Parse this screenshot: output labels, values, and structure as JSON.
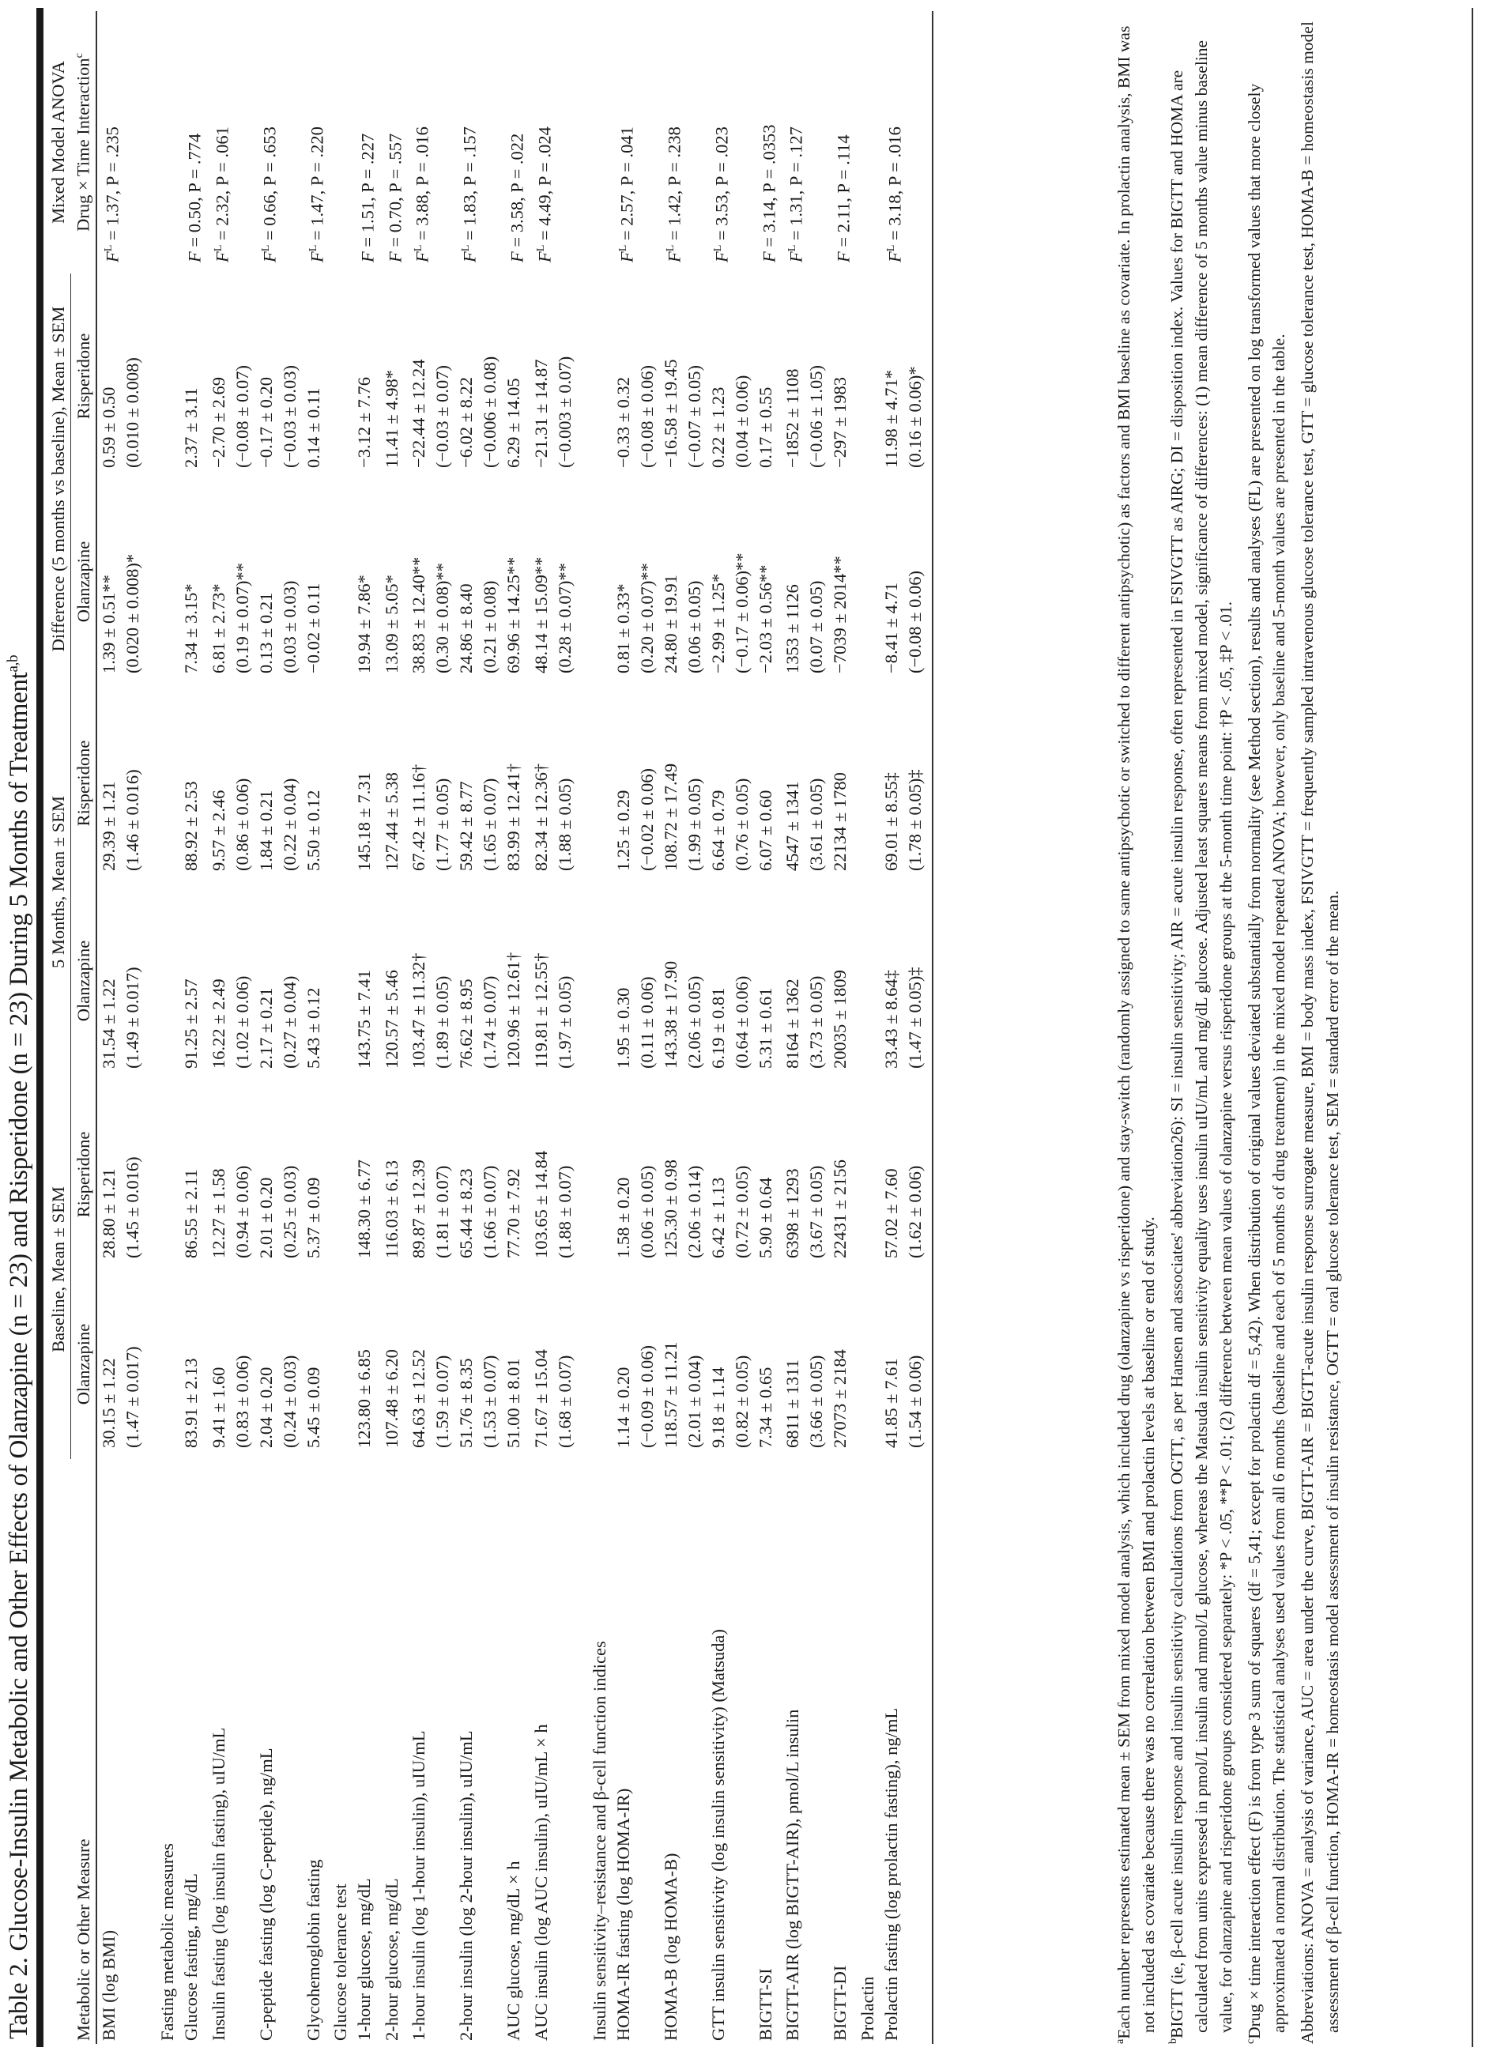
{
  "title": {
    "text": "Table 2. Glucose-Insulin Metabolic and Other Effects of Olanzapine (n = 23) and Risperidone (n = 23) During 5 Months of Treatment",
    "sup": "a,b"
  },
  "header": {
    "measure": "Metabolic or Other Measure",
    "baseline": "Baseline, Mean ± SEM",
    "five_months": "5 Months, Mean ± SEM",
    "difference": "Difference (5 months vs baseline), Mean ± SEM",
    "anova_line1": "Mixed Model ANOVA",
    "anova_line2": "Drug × Time Interaction",
    "anova_sup": "c",
    "olanzapine": "Olanzapine",
    "risperidone": "Risperidone"
  },
  "rows": [
    {
      "measure": "BMI (log BMI)",
      "cells": [
        [
          "30.15 ± 1.22",
          "(1.47 ± 0.017)"
        ],
        [
          "28.80 ± 1.21",
          "(1.45 ± 0.016)"
        ],
        [
          "31.54 ± 1.22",
          "(1.49 ± 0.017)"
        ],
        [
          "29.39 ± 1.21",
          "(1.46 ± 0.016)"
        ],
        [
          "1.39 ± 0.51**",
          "(0.020 ± 0.008)*"
        ],
        [
          "0.59 ± 0.50",
          "(0.010 ± 0.008)"
        ]
      ],
      "anova": {
        "stat": "F",
        "sup": "L",
        "rest": " = 1.37, P = .235"
      }
    },
    {
      "gap": true
    },
    {
      "section": "Fasting metabolic measures"
    },
    {
      "measure": "Glucose fasting, mg/dL",
      "cells": [
        [
          "83.91 ± 2.13"
        ],
        [
          "86.55 ± 2.11"
        ],
        [
          "91.25 ± 2.57"
        ],
        [
          "88.92 ± 2.53"
        ],
        [
          "7.34 ± 3.15*"
        ],
        [
          "2.37 ± 3.11"
        ]
      ],
      "anova": {
        "stat": "F",
        "sup": "",
        "rest": " = 0.50, P = .774"
      }
    },
    {
      "measure": "Insulin fasting (log insulin fasting), uIU/mL",
      "cells": [
        [
          "9.41 ± 1.60",
          "(0.83 ± 0.06)"
        ],
        [
          "12.27 ± 1.58",
          "(0.94 ± 0.06)"
        ],
        [
          "16.22 ± 2.49",
          "(1.02 ± 0.06)"
        ],
        [
          "9.57 ± 2.46",
          "(0.86 ± 0.06)"
        ],
        [
          "6.81 ± 2.73*",
          "(0.19 ± 0.07)**"
        ],
        [
          "−2.70 ± 2.69",
          "(−0.08 ± 0.07)"
        ]
      ],
      "anova": {
        "stat": "F",
        "sup": "L",
        "rest": " = 2.32, P = .061"
      }
    },
    {
      "measure": "C-peptide fasting (log C-peptide), ng/mL",
      "cells": [
        [
          "2.04 ± 0.20",
          "(0.24 ± 0.03)"
        ],
        [
          "2.01 ± 0.20",
          "(0.25 ± 0.03)"
        ],
        [
          "2.17 ± 0.21",
          "(0.27 ± 0.04)"
        ],
        [
          "1.84 ± 0.21",
          "(0.22 ± 0.04)"
        ],
        [
          "0.13 ± 0.21",
          "(0.03 ± 0.03)"
        ],
        [
          "−0.17 ± 0.20",
          "(−0.03 ± 0.03)"
        ]
      ],
      "anova": {
        "stat": "F",
        "sup": "L",
        "rest": " = 0.66, P = .653"
      }
    },
    {
      "measure": "Glycohemoglobin fasting",
      "cells": [
        [
          "5.45 ± 0.09"
        ],
        [
          "5.37 ± 0.09"
        ],
        [
          "5.43 ± 0.12"
        ],
        [
          "5.50 ± 0.12"
        ],
        [
          "−0.02 ± 0.11"
        ],
        [
          "0.14 ± 0.11"
        ]
      ],
      "anova": {
        "stat": "F",
        "sup": "L",
        "rest": " = 1.47, P = .220"
      }
    },
    {
      "section": "Glucose tolerance test"
    },
    {
      "measure": "1-hour glucose, mg/dL",
      "cells": [
        [
          "123.80 ± 6.85"
        ],
        [
          "148.30 ± 6.77"
        ],
        [
          "143.75 ± 7.41"
        ],
        [
          "145.18 ± 7.31"
        ],
        [
          "19.94 ± 7.86*"
        ],
        [
          "−3.12 ± 7.76"
        ]
      ],
      "anova": {
        "stat": "F",
        "sup": "",
        "rest": " = 1.51, P = .227"
      }
    },
    {
      "measure": "2-hour glucose, mg/dL",
      "cells": [
        [
          "107.48 ± 6.20"
        ],
        [
          "116.03 ± 6.13"
        ],
        [
          "120.57 ± 5.46"
        ],
        [
          "127.44 ± 5.38"
        ],
        [
          "13.09 ± 5.05*"
        ],
        [
          "11.41 ± 4.98*"
        ]
      ],
      "anova": {
        "stat": "F",
        "sup": "",
        "rest": " = 0.70, P = .557"
      }
    },
    {
      "measure": "1-hour insulin (log 1-hour insulin), uIU/mL",
      "cells": [
        [
          "64.63 ± 12.52",
          "(1.59 ± 0.07)"
        ],
        [
          "89.87 ± 12.39",
          "(1.81 ± 0.07)"
        ],
        [
          "103.47 ± 11.32†",
          "(1.89 ± 0.05)"
        ],
        [
          "67.42 ± 11.16†",
          "(1.77 ± 0.05)"
        ],
        [
          "38.83 ± 12.40**",
          "(0.30 ± 0.08)**"
        ],
        [
          "−22.44 ± 12.24",
          "(−0.03 ± 0.07)"
        ]
      ],
      "anova": {
        "stat": "F",
        "sup": "L",
        "rest": " = 3.88, P = .016"
      }
    },
    {
      "measure": "2-hour insulin (log 2-hour insulin), uIU/mL",
      "cells": [
        [
          "51.76 ± 8.35",
          "(1.53 ± 0.07)"
        ],
        [
          "65.44 ± 8.23",
          "(1.66 ± 0.07)"
        ],
        [
          "76.62 ± 8.95",
          "(1.74 ± 0.07)"
        ],
        [
          "59.42 ± 8.77",
          "(1.65 ± 0.07)"
        ],
        [
          "24.86 ± 8.40",
          "(0.21 ± 0.08)"
        ],
        [
          "−6.02 ± 8.22",
          "(−0.006 ± 0.08)"
        ]
      ],
      "anova": {
        "stat": "F",
        "sup": "L",
        "rest": " = 1.83, P = .157"
      }
    },
    {
      "measure": "AUC glucose, mg/dL × h",
      "cells": [
        [
          "51.00 ± 8.01"
        ],
        [
          "77.70 ± 7.92"
        ],
        [
          "120.96 ± 12.61†"
        ],
        [
          "83.99 ± 12.41†"
        ],
        [
          "69.96 ± 14.25**"
        ],
        [
          "6.29 ± 14.05"
        ]
      ],
      "anova": {
        "stat": "F",
        "sup": "",
        "rest": " = 3.58, P = .022"
      }
    },
    {
      "measure": "AUC insulin (log AUC insulin), uIU/mL × h",
      "cells": [
        [
          "71.67 ± 15.04",
          "(1.68 ± 0.07)"
        ],
        [
          "103.65 ± 14.84",
          "(1.88 ± 0.07)"
        ],
        [
          "119.81 ± 12.55†",
          "(1.97 ± 0.05)"
        ],
        [
          "82.34 ± 12.36†",
          "(1.88 ± 0.05)"
        ],
        [
          "48.14 ± 15.09**",
          "(0.28 ± 0.07)**"
        ],
        [
          "−21.31 ± 14.87",
          "(−0.003 ± 0.07)"
        ]
      ],
      "anova": {
        "stat": "F",
        "sup": "L",
        "rest": " = 4.49, P = .024"
      }
    },
    {
      "gap": true
    },
    {
      "section": "Insulin sensitivity–resistance and β-cell function indices"
    },
    {
      "measure": "HOMA-IR fasting (log HOMA-IR)",
      "cells": [
        [
          "1.14 ± 0.20",
          "(−0.09 ± 0.06)"
        ],
        [
          "1.58 ± 0.20",
          "(0.06 ± 0.05)"
        ],
        [
          "1.95 ± 0.30",
          "(0.11 ± 0.06)"
        ],
        [
          "1.25 ± 0.29",
          "(−0.02 ± 0.06)"
        ],
        [
          "0.81 ± 0.33*",
          "(0.20 ± 0.07)**"
        ],
        [
          "−0.33 ± 0.32",
          "(−0.08 ± 0.06)"
        ]
      ],
      "anova": {
        "stat": "F",
        "sup": "L",
        "rest": " = 2.57, P = .041"
      }
    },
    {
      "measure": "HOMA-B (log HOMA-B)",
      "cells": [
        [
          "118.57 ± 11.21",
          "(2.01 ± 0.04)"
        ],
        [
          "125.30 ± 0.98",
          "(2.06 ± 0.14)"
        ],
        [
          "143.38 ± 17.90",
          "(2.06 ± 0.05)"
        ],
        [
          "108.72 ± 17.49",
          "(1.99 ± 0.05)"
        ],
        [
          "24.80 ± 19.91",
          "(0.06 ± 0.05)"
        ],
        [
          "−16.58 ± 19.45",
          "(−0.07 ± 0.05)"
        ]
      ],
      "anova": {
        "stat": "F",
        "sup": "L",
        "rest": " = 1.42, P = .238"
      }
    },
    {
      "measure": "GTT insulin sensitivity (log insulin sensitivity) (Matsuda)",
      "cells": [
        [
          "9.18 ± 1.14",
          "(0.82 ± 0.05)"
        ],
        [
          "6.42 ± 1.13",
          "(0.72 ± 0.05)"
        ],
        [
          "6.19 ± 0.81",
          "(0.64 ± 0.06)"
        ],
        [
          "6.64 ± 0.79",
          "(0.76 ± 0.05)"
        ],
        [
          "−2.99 ± 1.25*",
          "(−0.17 ± 0.06)**"
        ],
        [
          "0.22 ± 1.23",
          "(0.04 ± 0.06)"
        ]
      ],
      "anova": {
        "stat": "F",
        "sup": "L",
        "rest": " = 3.53, P = .023"
      }
    },
    {
      "measure": "BIGTT-SI",
      "cells": [
        [
          "7.34 ± 0.65"
        ],
        [
          "5.90 ± 0.64"
        ],
        [
          "5.31 ± 0.61"
        ],
        [
          "6.07 ± 0.60"
        ],
        [
          "−2.03 ± 0.56**"
        ],
        [
          "0.17 ± 0.55"
        ]
      ],
      "anova": {
        "stat": "F",
        "sup": "",
        "rest": " = 3.14, P = .0353"
      }
    },
    {
      "measure": "BIGTT-AIR (log BIGTT-AIR), pmol/L insulin",
      "cells": [
        [
          "6811 ± 1311",
          "(3.66 ± 0.05)"
        ],
        [
          "6398 ± 1293",
          "(3.67 ± 0.05)"
        ],
        [
          "8164 ± 1362",
          "(3.73 ± 0.05)"
        ],
        [
          "4547 ± 1341",
          "(3.61 ± 0.05)"
        ],
        [
          "1353 ± 1126",
          "(0.07 ± 0.05)"
        ],
        [
          "−1852 ± 1108",
          "(−0.06 ± 1.05)"
        ]
      ],
      "anova": {
        "stat": "F",
        "sup": "L",
        "rest": " = 1.31, P = .127"
      }
    },
    {
      "measure": "BIGTT-DI",
      "cells": [
        [
          "27073 ± 2184"
        ],
        [
          "22431 ± 2156"
        ],
        [
          "20035 ± 1809"
        ],
        [
          "22134 ± 1780"
        ],
        [
          "−7039 ± 2014**"
        ],
        [
          "−297 ± 1983"
        ]
      ],
      "anova": {
        "stat": "F",
        "sup": "",
        "rest": " = 2.11, P = .114"
      }
    },
    {
      "section": "Prolactin"
    },
    {
      "measure": "Prolactin fasting (log prolactin fasting), ng/mL",
      "cells": [
        [
          "41.85 ± 7.61",
          "(1.54 ± 0.06)"
        ],
        [
          "57.02 ± 7.60",
          "(1.62 ± 0.06)"
        ],
        [
          "33.43 ± 8.64‡",
          "(1.47 ± 0.05)‡"
        ],
        [
          "69.01 ± 8.55‡",
          "(1.78 ± 0.05)‡"
        ],
        [
          "−8.41 ± 4.71",
          "(−0.08 ± 0.06)"
        ],
        [
          "11.98 ± 4.71*",
          "(0.16 ± 0.06)*"
        ]
      ],
      "anova": {
        "stat": "F",
        "sup": "L",
        "rest": " = 3.18, P = .016"
      },
      "last": true
    }
  ],
  "footnotes": [
    {
      "mark": "a",
      "text": "Each number represents estimated mean ± SEM from mixed model analysis, which included drug (olanzapine vs risperidone) and stay-switch (randomly assigned to same antipsychotic or switched to different antipsychotic) as factors and BMI baseline as covariate. In prolactin analysis, BMI was not included as covariate because there was no correlation between BMI and prolactin levels at baseline or end of study."
    },
    {
      "mark": "b",
      "text": "BIGTT (ie, β-cell acute insulin response and insulin sensitivity calculations from OGTT, as per Hansen and associates' abbreviation26): SI = insulin sensitivity; AIR = acute insulin response, often represented in FSIVGTT as AIRG; DI = disposition index. Values for BIGTT and HOMA are calculated from units expressed in pmol/L insulin and mmol/L glucose, whereas the Matsuda insulin sensitivity equality uses insulin uIU/mL and mg/dL glucose. Adjusted least squares means from mixed model, significance of differences: (1) mean difference of 5 months value minus baseline value, for olanzapine and risperidone groups considered separately: *P < .05, **P < .01; (2) difference between mean values of olanzapine versus risperidone groups at the 5-month time point: †P < .05, ‡P < .01."
    },
    {
      "mark": "c",
      "text": "Drug × time interaction effect (F) is from type 3 sum of squares (df = 5,41; except for prolactin df = 5,42). When distribution of original values deviated substantially from normality (see Method section), results and analyses (FL) are presented on log transformed values that more closely approximated a normal distribution. The statistical analyses used values from all 6 months (baseline and each of 5 months of drug treatment) in the mixed model repeated ANOVA; however, only baseline and 5-month values are presented in the table."
    },
    {
      "mark": "",
      "text": "Abbreviations: ANOVA = analysis of variance, AUC = area under the curve, BIGTT-AIR = BIGTT-acute insulin response surrogate measure, BMI = body mass index, FSIVGTT = frequently sampled intravenous glucose tolerance test, GTT = glucose tolerance test, HOMA-B = homeostasis model assessment of β-cell function, HOMA-IR = homeostasis model assessment of insulin resistance, OGTT = oral glucose tolerance test, SEM = standard error of the mean."
    }
  ]
}
